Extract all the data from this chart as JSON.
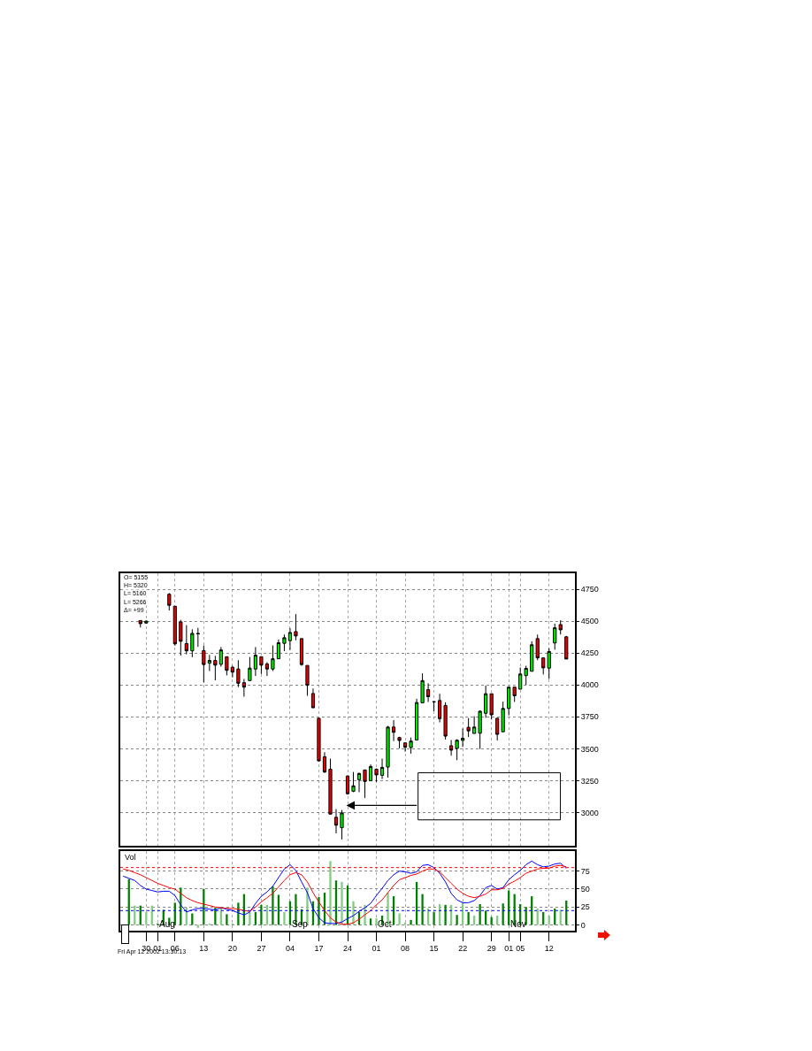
{
  "chart_data": [
    {
      "type": "candlestick",
      "categories": [
        null,
        null,
        null,
        null,
        "30",
        null,
        "01",
        null,
        null,
        "06",
        null,
        null,
        null,
        null,
        "13",
        null,
        null,
        null,
        null,
        "20",
        null,
        null,
        null,
        null,
        "27",
        null,
        null,
        null,
        null,
        "04",
        null,
        null,
        null,
        null,
        "17",
        null,
        null,
        null,
        null,
        "24",
        null,
        null,
        null,
        null,
        "01",
        null,
        null,
        null,
        null,
        "08",
        null,
        null,
        null,
        null,
        "15",
        null,
        null,
        null,
        null,
        "22",
        null,
        null,
        null,
        null,
        "29",
        null,
        null,
        "01",
        null,
        "05",
        null,
        null,
        null,
        null,
        "12",
        null,
        null,
        null,
        null
      ],
      "ohlc": [
        null,
        null,
        null,
        [
          4505,
          4505,
          4450,
          4480
        ],
        [
          4485,
          4505,
          4480,
          4500
        ],
        null,
        null,
        null,
        [
          4711,
          4720,
          4583,
          4624
        ],
        [
          4617,
          4617,
          4308,
          4322
        ],
        [
          4494,
          4510,
          4230,
          4342
        ],
        [
          4324,
          4468,
          4240,
          4267
        ],
        [
          4267,
          4436,
          4217,
          4404
        ],
        [
          4404,
          4448,
          4299,
          4400
        ],
        [
          4269,
          4310,
          4018,
          4160
        ],
        [
          4171,
          4235,
          4109,
          4192
        ],
        [
          4192,
          4228,
          4036,
          4155
        ],
        [
          4162,
          4297,
          4143,
          4274
        ],
        [
          4221,
          4221,
          4075,
          4114
        ],
        [
          4139,
          4150,
          4059,
          4100
        ],
        [
          4125,
          4194,
          3983,
          4013
        ],
        [
          4018,
          4047,
          3908,
          3983
        ],
        [
          4034,
          4219,
          4034,
          4132
        ],
        [
          4125,
          4297,
          4070,
          4233
        ],
        [
          4221,
          4221,
          4086,
          4155
        ],
        [
          4164,
          4178,
          4070,
          4125
        ],
        [
          4125,
          4310,
          4109,
          4205
        ],
        [
          4205,
          4356,
          4205,
          4331
        ],
        [
          4326,
          4395,
          4265,
          4370
        ],
        [
          4347,
          4445,
          4274,
          4411
        ],
        [
          4418,
          4555,
          4350,
          4384
        ],
        [
          4363,
          4363,
          4150,
          4160
        ],
        [
          4153,
          4153,
          3915,
          3997
        ],
        [
          3933,
          3972,
          3821,
          3821
        ],
        [
          3739,
          3739,
          3400,
          3405
        ],
        [
          3437,
          3473,
          3310,
          3318
        ],
        [
          3340,
          3423,
          2988,
          2988
        ],
        [
          2963,
          3027,
          2837,
          2901
        ],
        [
          2881,
          3020,
          2789,
          2997
        ],
        [
          3286,
          3290,
          3140,
          3148
        ],
        [
          3167,
          3318,
          3160,
          3210
        ],
        [
          3258,
          3313,
          3160,
          3306
        ],
        [
          3334,
          3334,
          3114,
          3244
        ],
        [
          3249,
          3377,
          3249,
          3361
        ],
        [
          3340,
          3345,
          3240,
          3295
        ],
        [
          3292,
          3423,
          3263,
          3354
        ],
        [
          3357,
          3679,
          3274,
          3670
        ],
        [
          3670,
          3725,
          3560,
          3629
        ],
        [
          3588,
          3594,
          3503,
          3565
        ],
        [
          3546,
          3548,
          3478,
          3512
        ],
        [
          3510,
          3588,
          3462,
          3560
        ],
        [
          3569,
          3892,
          3565,
          3862
        ],
        [
          3860,
          4091,
          3860,
          4034
        ],
        [
          3963,
          4013,
          3867,
          3908
        ],
        [
          3869,
          3869,
          3794,
          3867
        ],
        [
          3878,
          3931,
          3707,
          3736
        ],
        [
          3839,
          3864,
          3572,
          3599
        ],
        [
          3524,
          3569,
          3446,
          3489
        ],
        [
          3503,
          3574,
          3411,
          3567
        ],
        [
          3565,
          3659,
          3514,
          3583
        ],
        [
          3668,
          3741,
          3592,
          3640
        ],
        [
          3620,
          3755,
          3620,
          3670
        ],
        [
          3622,
          3801,
          3498,
          3794
        ],
        [
          3778,
          3995,
          3743,
          3931
        ],
        [
          3931,
          3931,
          3729,
          3766
        ],
        [
          3739,
          3739,
          3565,
          3613
        ],
        [
          3633,
          3869,
          3633,
          3816
        ],
        [
          3816,
          3983,
          3761,
          3983
        ],
        [
          3983,
          3983,
          3867,
          3915
        ],
        [
          3967,
          4137,
          3967,
          4086
        ],
        [
          4073,
          4150,
          4000,
          4130
        ],
        [
          4107,
          4342,
          4107,
          4315
        ],
        [
          4363,
          4395,
          4194,
          4212
        ],
        [
          4212,
          4212,
          4082,
          4134
        ],
        [
          4132,
          4288,
          4047,
          4262
        ],
        [
          4329,
          4480,
          4276,
          4448
        ],
        [
          4473,
          4507,
          4395,
          4432
        ],
        [
          4377,
          4384,
          4203,
          4203
        ],
        null
      ],
      "colors": [
        null,
        null,
        null,
        "#ee0000",
        "#00ee00",
        null,
        null,
        null,
        "#ee0000",
        "#ee0000",
        "#ee0000",
        "#ee0000",
        "#00ee00",
        "#000000",
        "#ee0000",
        "#00ee00",
        "#ee0000",
        "#00ee00",
        "#ee0000",
        "#ee0000",
        "#ee0000",
        "#ee0000",
        "#00ee00",
        "#00ee00",
        "#ee0000",
        "#ee0000",
        "#00ee00",
        "#00ee00",
        "#00ee00",
        "#00ee00",
        "#ee0000",
        "#ee0000",
        "#ee0000",
        "#ee0000",
        "#ee0000",
        "#ee0000",
        "#ee0000",
        "#ee0000",
        "#00ee00",
        "#ee0000",
        "#00ee00",
        "#00ee00",
        "#ee0000",
        "#00ee00",
        "#ee0000",
        "#00ee00",
        "#00ee00",
        "#ee0000",
        "#ee0000",
        "#ee0000",
        "#00ee00",
        "#00ee00",
        "#00ee00",
        "#ee0000",
        "#000000",
        "#ee0000",
        "#ee0000",
        "#ee0000",
        "#00ee00",
        "#00ee00",
        "#ee0000",
        "#00ee00",
        "#00ee00",
        "#00ee00",
        "#ee0000",
        "#ee0000",
        "#00ee00",
        "#00ee00",
        "#ee0000",
        "#00ee00",
        "#00ee00",
        "#00ee00",
        "#ee0000",
        "#ee0000",
        "#00ee00",
        "#00ee00",
        "#ee0000",
        "#ee0000",
        null
      ],
      "ylim": [
        2740,
        4875
      ],
      "yticks": [
        3000,
        3250,
        3500,
        3750,
        4000,
        4250,
        4500,
        4750
      ],
      "grid": true,
      "tick_labels": "y",
      "annotations": [
        "O= 5155",
        "H= 5320",
        "L= 5160",
        "L= 5266",
        "Δ= +99"
      ]
    },
    {
      "type": "bar",
      "categories": [
        null,
        null,
        null,
        null,
        "30",
        null,
        "01",
        null,
        null,
        "06",
        null,
        null,
        null,
        null,
        "13",
        null,
        null,
        null,
        null,
        "20",
        null,
        null,
        null,
        null,
        "27",
        null,
        null,
        null,
        null,
        "04",
        null,
        null,
        null,
        null,
        "17",
        null,
        null,
        null,
        null,
        "24",
        null,
        null,
        null,
        null,
        "01",
        null,
        null,
        null,
        null,
        "08",
        null,
        null,
        null,
        null,
        "15",
        null,
        null,
        null,
        null,
        "22",
        null,
        null,
        null,
        null,
        "29",
        null,
        null,
        "01",
        null,
        "05",
        null,
        null,
        null,
        null,
        "12",
        null,
        null,
        null,
        null
      ],
      "series": [
        {
          "type": "bar",
          "values": [
            null,
            64,
            27,
            27,
            18,
            27,
            2,
            21,
            10,
            31,
            52,
            24,
            16,
            -4,
            50,
            2,
            24,
            25,
            15,
            2,
            31,
            43,
            18,
            18,
            28,
            28,
            54,
            42,
            18,
            33,
            43,
            22,
            52,
            33,
            39,
            45,
            89,
            62,
            60,
            55,
            33,
            18,
            28,
            9,
            9,
            13,
            45,
            40,
            16,
            3,
            7,
            60,
            43,
            23,
            18,
            29,
            28,
            28,
            14,
            32,
            18,
            13,
            29,
            20,
            11,
            13,
            30,
            48,
            43,
            29,
            25,
            40,
            23,
            18,
            13,
            23,
            21,
            34,
            null
          ],
          "colors": [
            "#008000",
            "#008000",
            "#80cc80",
            "#008000",
            "#80cc80",
            "#80cc80",
            "#008000",
            "#008000",
            "#008000",
            "#008000",
            "#008000",
            "#80cc80",
            "#008000",
            "#80cc80",
            "#008000",
            "#80cc80",
            "#008000",
            "#80cc80",
            "#008000",
            "#80cc80",
            "#008000",
            "#008000",
            "#80cc80",
            "#008000",
            "#008000",
            "#80cc80",
            "#008000",
            "#008000",
            "#80cc80",
            "#008000",
            "#008000",
            "#008000",
            "#80cc80",
            "#008000",
            "#008000",
            "#008000",
            "#80cc80",
            "#008000",
            "#80cc80",
            "#008000",
            "#80cc80",
            "#008000",
            "#80cc80",
            "#008000",
            "#80cc80",
            "#008000",
            "#80cc80",
            "#008000",
            "#80cc80",
            "#80cc80",
            "#008000",
            "#008000",
            "#008000",
            "#80cc80",
            "#008000",
            "#80cc80",
            "#008000",
            "#80cc80",
            "#008000",
            "#80cc80",
            "#008000",
            "#80cc80",
            "#008000",
            "#008000",
            "#008000",
            "#80cc80",
            "#008000",
            "#008000",
            "#008000",
            "#008000",
            "#008000",
            "#008000",
            "#80cc80",
            "#008000",
            "#80cc80",
            "#008000",
            "#80cc80",
            "#008000",
            "#008000"
          ]
        },
        {
          "type": "line",
          "color": "#0000ff",
          "values": [
            68,
            65,
            62,
            55,
            50,
            48,
            46,
            47,
            47,
            41,
            28,
            18,
            21,
            23,
            23,
            22,
            21,
            24,
            22,
            20,
            17,
            14,
            18,
            30,
            40,
            46,
            54,
            66,
            78,
            84,
            76,
            60,
            45,
            23,
            10,
            3,
            2,
            2,
            4,
            9,
            13,
            19,
            24,
            30,
            41,
            51,
            62,
            70,
            75,
            74,
            72,
            74,
            83,
            84,
            80,
            72,
            60,
            44,
            35,
            31,
            31,
            34,
            41,
            52,
            55,
            50,
            52,
            63,
            70,
            76,
            84,
            89,
            84,
            81,
            82,
            85,
            86,
            79,
            null
          ]
        },
        {
          "type": "line",
          "color": "#ff0000",
          "values": [
            78,
            76,
            73,
            70,
            66,
            62,
            58,
            55,
            52,
            50,
            44,
            38,
            34,
            31,
            29,
            27,
            25,
            24,
            23,
            23,
            22,
            20,
            19,
            25,
            32,
            38,
            44,
            53,
            62,
            70,
            73,
            70,
            60,
            45,
            32,
            20,
            10,
            4,
            1,
            1,
            3,
            8,
            14,
            20,
            28,
            35,
            45,
            55,
            63,
            66,
            69,
            71,
            75,
            78,
            78,
            74,
            66,
            58,
            50,
            44,
            40,
            38,
            40,
            43,
            49,
            49,
            51,
            57,
            61,
            66,
            72,
            75,
            78,
            79,
            79,
            82,
            83,
            81,
            null
          ]
        }
      ],
      "ylim": [
        -8,
        103
      ],
      "yticks": [
        0,
        25,
        50,
        75
      ],
      "grid": true,
      "ref_lines": [
        {
          "axis": "y",
          "value": 80,
          "color": "#ff0000",
          "line_style": "dotted"
        },
        {
          "axis": "y",
          "value": 20,
          "color": "#0000ff",
          "line_style": "dotted"
        }
      ],
      "annotations": [
        "Vol",
        "Aug",
        "Sep",
        "Oct",
        "Nov",
        "Fri Apr 12 2002 13:30:13"
      ]
    }
  ]
}
